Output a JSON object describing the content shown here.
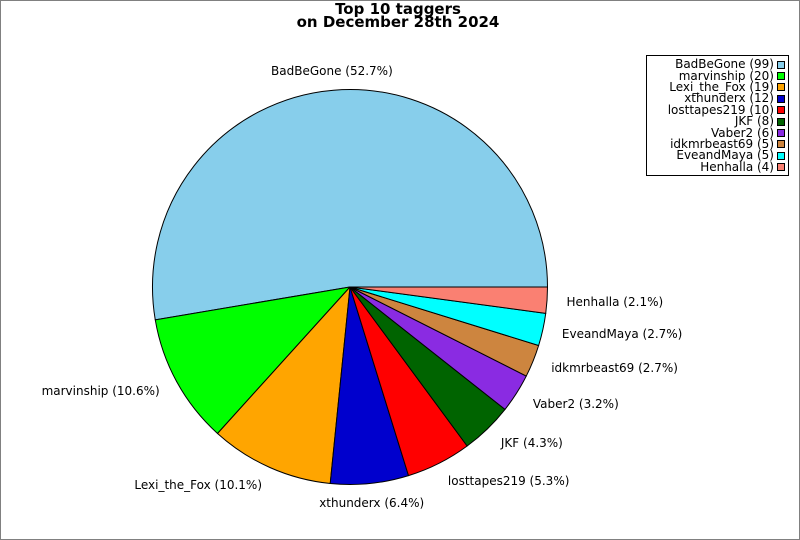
{
  "title": {
    "line1": "Top 10 taggers",
    "line2": "on December 28th 2024"
  },
  "chart_data": {
    "type": "pie",
    "total_count": 188,
    "start_angle_deg": 0,
    "direction": "counterclockwise",
    "legend_position": "upper right",
    "slices": [
      {
        "name": "BadBeGone",
        "count": 99,
        "pct": 52.7,
        "label": "BadBeGone (52.7%)",
        "legend_label": "BadBeGone (99)",
        "color": "#87CEEB"
      },
      {
        "name": "marvinship",
        "count": 20,
        "pct": 10.6,
        "label": "marvinship (10.6%)",
        "legend_label": "marvinship (20)",
        "color": "#00FF00"
      },
      {
        "name": "Lexi_the_Fox",
        "count": 19,
        "pct": 10.1,
        "label": "Lexi_the_Fox (10.1%)",
        "legend_label": "Lexi_the_Fox (19)",
        "color": "#FFA500"
      },
      {
        "name": "xthunderx",
        "count": 12,
        "pct": 6.4,
        "label": "xthunderx (6.4%)",
        "legend_label": "xthunderx (12)",
        "color": "#0000CD"
      },
      {
        "name": "losttapes219",
        "count": 10,
        "pct": 5.3,
        "label": "losttapes219 (5.3%)",
        "legend_label": "losttapes219 (10)",
        "color": "#FF0000"
      },
      {
        "name": "JKF",
        "count": 8,
        "pct": 4.3,
        "label": "JKF (4.3%)",
        "legend_label": "JKF (8)",
        "color": "#006400"
      },
      {
        "name": "Vaber2",
        "count": 6,
        "pct": 3.2,
        "label": "Vaber2 (3.2%)",
        "legend_label": "Vaber2 (6)",
        "color": "#8A2BE2"
      },
      {
        "name": "idkmrbeast69",
        "count": 5,
        "pct": 2.7,
        "label": "idkmrbeast69 (2.7%)",
        "legend_label": "idkmrbeast69 (5)",
        "color": "#CD853F"
      },
      {
        "name": "EveandMaya",
        "count": 5,
        "pct": 2.7,
        "label": "EveandMaya (2.7%)",
        "legend_label": "EveandMaya (5)",
        "color": "#00FFFF"
      },
      {
        "name": "Henhalla",
        "count": 4,
        "pct": 2.1,
        "label": "Henhalla (2.1%)",
        "legend_label": "Henhalla (4)",
        "color": "#FA8072"
      }
    ]
  }
}
